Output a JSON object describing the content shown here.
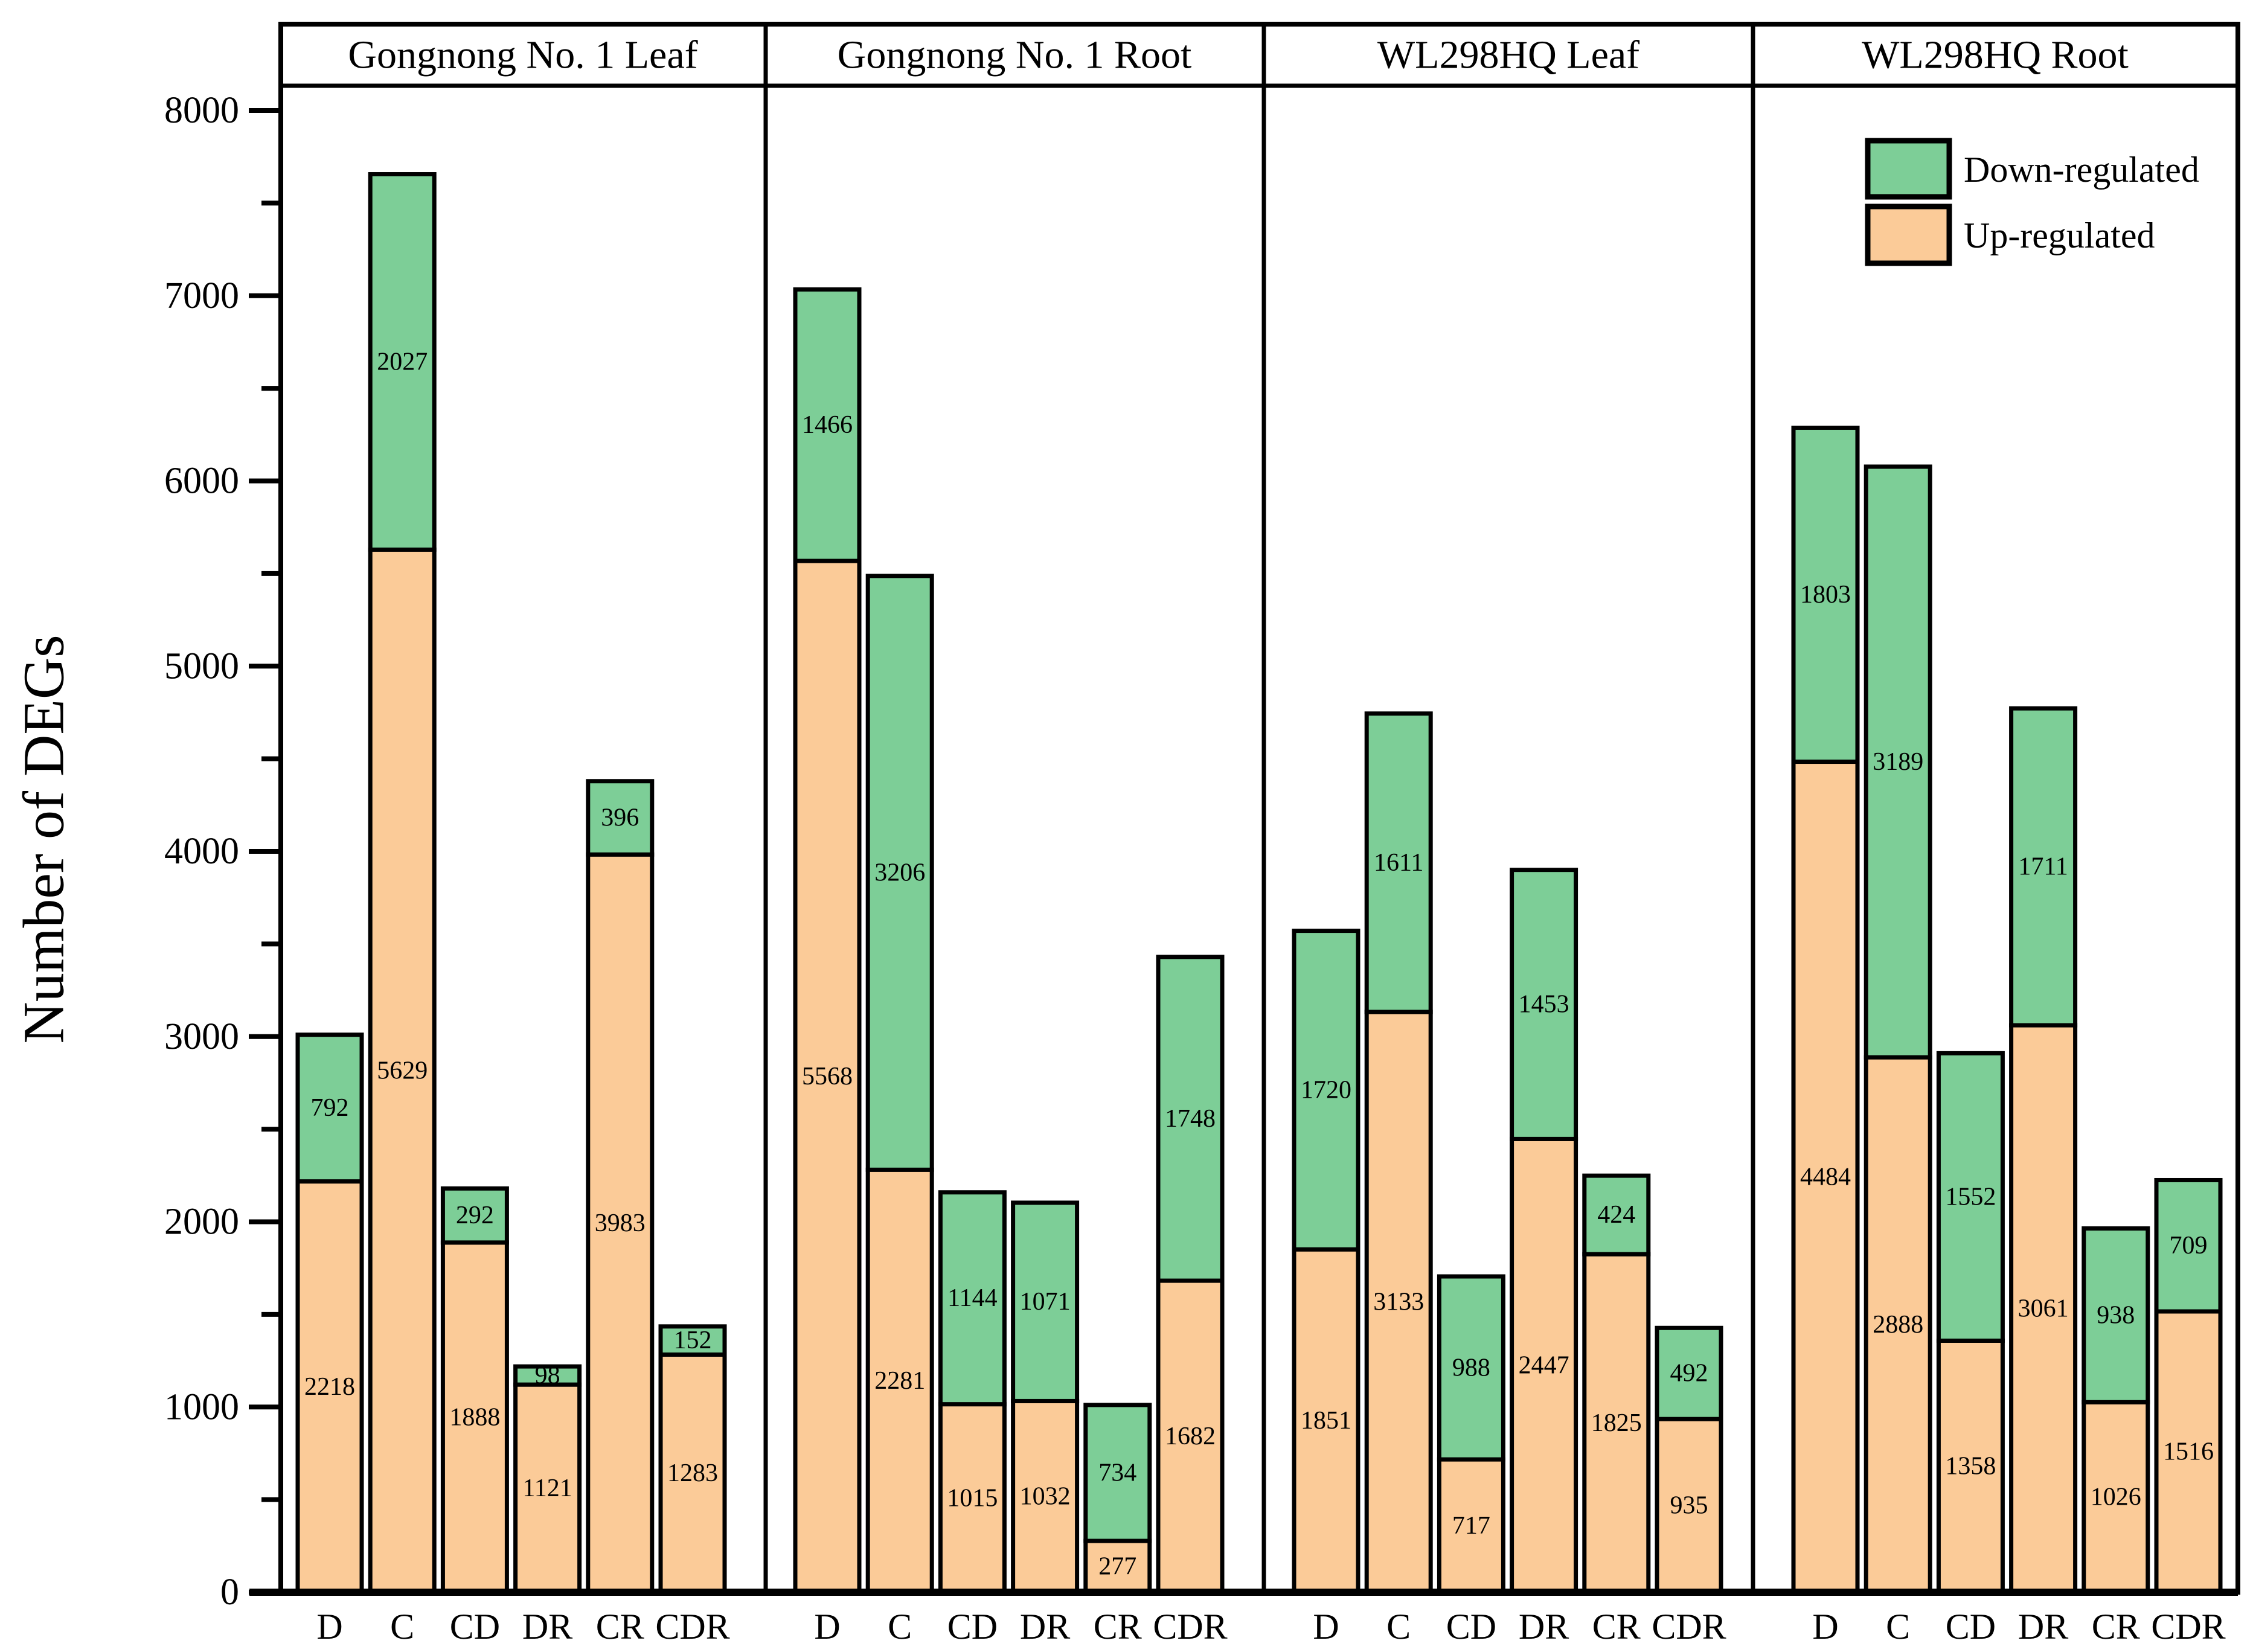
{
  "chart_data": {
    "type": "bar",
    "stacked": true,
    "title": "",
    "xlabel": "",
    "ylabel": "Number of DEGs",
    "ylim": [
      0,
      8000
    ],
    "grid": false,
    "y_ticks": [
      "0",
      "1000",
      "2000",
      "3000",
      "4000",
      "5000",
      "6000",
      "7000",
      "8000"
    ],
    "y_minor_step": 500,
    "categories": [
      "D",
      "C",
      "CD",
      "DR",
      "CR",
      "CDR"
    ],
    "legend": {
      "position": "top-right",
      "items": [
        {
          "label": "Down-regulated",
          "key": "down"
        },
        {
          "label": "Up-regulated",
          "key": "up"
        }
      ]
    },
    "colors": {
      "up": "#FBCB98",
      "down": "#7DCE97",
      "outline": "#000000"
    },
    "panels": [
      {
        "title": "Gongnong No. 1 Leaf",
        "series": [
          {
            "name": "Up-regulated",
            "values": [
              2218,
              5629,
              1888,
              1121,
              3983,
              1283
            ]
          },
          {
            "name": "Down-regulated",
            "values": [
              792,
              2027,
              292,
              98,
              396,
              152
            ]
          }
        ]
      },
      {
        "title": "Gongnong No. 1 Root",
        "series": [
          {
            "name": "Up-regulated",
            "values": [
              5568,
              2281,
              1015,
              1032,
              277,
              1682
            ]
          },
          {
            "name": "Down-regulated",
            "values": [
              1466,
              3206,
              1144,
              1071,
              734,
              1748
            ]
          }
        ]
      },
      {
        "title": "WL298HQ Leaf",
        "series": [
          {
            "name": "Up-regulated",
            "values": [
              1851,
              3133,
              717,
              2447,
              1825,
              935
            ]
          },
          {
            "name": "Down-regulated",
            "values": [
              1720,
              1611,
              988,
              1453,
              424,
              492
            ]
          }
        ]
      },
      {
        "title": "WL298HQ Root",
        "series": [
          {
            "name": "Up-regulated",
            "values": [
              4484,
              2888,
              1358,
              3061,
              1026,
              1516
            ]
          },
          {
            "name": "Down-regulated",
            "values": [
              1803,
              3189,
              1552,
              1711,
              938,
              709
            ]
          }
        ]
      }
    ]
  }
}
